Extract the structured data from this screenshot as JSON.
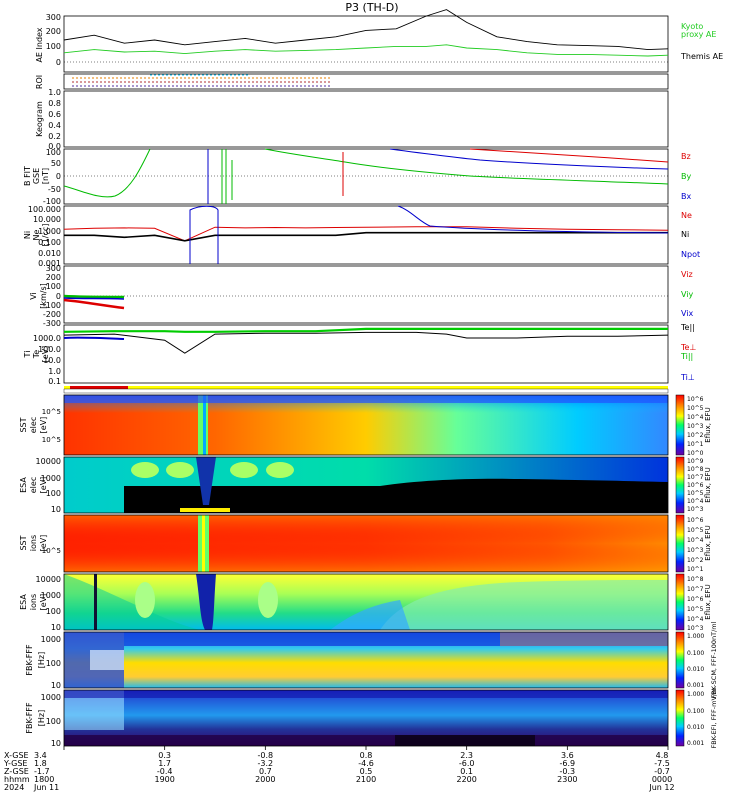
{
  "figure": {
    "title": "P3 (TH-D)"
  },
  "panels": {
    "ae": {
      "ylabel": "AE Index",
      "yticks": [
        "300",
        "200",
        "100",
        "0"
      ],
      "legend": [
        {
          "text": "Kyoto",
          "color": "#22cc22"
        },
        {
          "text": "proxy AE",
          "color": "#22cc22"
        },
        {
          "text": "Themis AE",
          "color": "#000000"
        }
      ]
    },
    "roi": {
      "ylabel": "ROI"
    },
    "keogram": {
      "ylabel": "Keogram",
      "yticks": [
        "1.0",
        "0.8",
        "0.6",
        "0.4",
        "0.2",
        "0.0"
      ]
    },
    "bfit": {
      "ylabel": "B FIT",
      "ylabel2": "GSE",
      "ylabel3": "[nT]",
      "yticks": [
        "100",
        "50",
        "0",
        "-50",
        "-100"
      ],
      "legend": [
        {
          "text": "Bz",
          "color": "#dd0000"
        },
        {
          "text": "By",
          "color": "#00bb00"
        },
        {
          "text": "Bx",
          "color": "#0000cc"
        }
      ]
    },
    "density": {
      "ylabel": "Ni",
      "ylabel2": "Ne",
      "ylabel3": "[1/cc]",
      "yticks": [
        "100.000",
        "10.000",
        "1.000",
        "0.100",
        "0.010",
        "0.001"
      ],
      "legend": [
        {
          "text": "Ne",
          "color": "#dd0000"
        },
        {
          "text": "Ni",
          "color": "#000000"
        },
        {
          "text": "Npot",
          "color": "#0000cc"
        }
      ]
    },
    "velocity": {
      "ylabel": "Vi",
      "ylabel2": "[km/s]",
      "yticks": [
        "300",
        "200",
        "100",
        "0",
        "-100",
        "-200",
        "-300"
      ],
      "legend": [
        {
          "text": "Viz",
          "color": "#dd0000"
        },
        {
          "text": "Viy",
          "color": "#00bb00"
        },
        {
          "text": "Vix",
          "color": "#0000cc"
        }
      ]
    },
    "temperature": {
      "ylabel": "Ti",
      "ylabel2": "Te",
      "ylabel3": "[eV]",
      "yticks": [
        "1000.0",
        "100.0",
        "10.0",
        "1.0",
        "0.1"
      ],
      "legend": [
        {
          "text": "Te||",
          "color": "#000000"
        },
        {
          "text": "Te⊥",
          "color": "#dd0000"
        },
        {
          "text": "Ti||",
          "color": "#00bb00"
        },
        {
          "text": "Ti⊥",
          "color": "#0000cc"
        }
      ]
    },
    "sst_e": {
      "ylabel": "SST",
      "ylabel2": "elec",
      "ylabel3": "[eV]",
      "yticks": [
        "10^5",
        "10^5"
      ],
      "cbar_ticks": [
        "10^6",
        "10^5",
        "10^4",
        "10^3",
        "10^2",
        "10^1",
        "10^0"
      ],
      "cbar_label": "Eflux, EFU"
    },
    "esa_e": {
      "ylabel": "ESA",
      "ylabel2": "elec",
      "ylabel3": "[eV]",
      "yticks": [
        "10000",
        "1000",
        "100",
        "10"
      ],
      "cbar_ticks": [
        "10^9",
        "10^8",
        "10^7",
        "10^6",
        "10^5",
        "10^4",
        "10^3"
      ],
      "cbar_label": "Eflux, EFU"
    },
    "sst_i": {
      "ylabel": "SST",
      "ylabel2": "ions",
      "ylabel3": "[eV]",
      "yticks": [
        "10^5"
      ],
      "cbar_ticks": [
        "10^6",
        "10^5",
        "10^4",
        "10^3",
        "10^2",
        "10^1"
      ],
      "cbar_label": "Eflux, EFU"
    },
    "esa_i": {
      "ylabel": "ESA",
      "ylabel2": "ions",
      "ylabel3": "[eV]",
      "yticks": [
        "10000",
        "1000",
        "100",
        "10"
      ],
      "cbar_ticks": [
        "10^8",
        "10^7",
        "10^6",
        "10^5",
        "10^4",
        "10^3"
      ],
      "cbar_label": "Eflux, EFU"
    },
    "fbk_b": {
      "ylabel": "FBK-FFF",
      "ylabel2": "[Hz]",
      "yticks": [
        "1000",
        "100",
        "10"
      ],
      "cbar_ticks": [
        "1.000",
        "0.100",
        "0.010",
        "0.001"
      ],
      "cbar_label": "FBK-SCM, FFF-100nT/ml"
    },
    "fbk_e": {
      "ylabel": "FBK-FFF",
      "ylabel2": "[Hz]",
      "yticks": [
        "1000",
        "100",
        "10"
      ],
      "cbar_ticks": [
        "1.000",
        "0.100",
        "0.010",
        "0.001"
      ],
      "cbar_label": "FBK-EFI, FFF-mV/m"
    }
  },
  "xaxis": {
    "row_labels": [
      "X-GSE",
      "Y-GSE",
      "Z-GSE",
      "hhmm",
      "2024"
    ],
    "columns": [
      {
        "x": "3.4",
        "y": "1.8",
        "z": "-1.7",
        "time": "1800",
        "date": "Jun 11"
      },
      {
        "x": "0.3",
        "y": "1.7",
        "z": "-0.4",
        "time": "1900",
        "date": ""
      },
      {
        "x": "-0.8",
        "y": "-3.2",
        "z": "0.7",
        "time": "2000",
        "date": ""
      },
      {
        "x": "0.8",
        "y": "-4.6",
        "z": "0.5",
        "time": "2100",
        "date": ""
      },
      {
        "x": "2.3",
        "y": "-6.0",
        "z": "0.1",
        "time": "2200",
        "date": ""
      },
      {
        "x": "3.6",
        "y": "-6.9",
        "z": "-0.3",
        "time": "2300",
        "date": ""
      },
      {
        "x": "4.8",
        "y": "-7.5",
        "z": "-0.7",
        "time": "0000",
        "date": "Jun 12"
      }
    ]
  },
  "chart_data": {
    "type": "line",
    "x_time_range": [
      "1800",
      "0000"
    ],
    "ae_index": {
      "x_hours": [
        18.0,
        18.3,
        18.6,
        18.9,
        19.2,
        19.5,
        19.8,
        20.1,
        20.4,
        20.7,
        21.0,
        21.3,
        21.6,
        21.8,
        22.0,
        22.3,
        22.6,
        22.9,
        23.2,
        23.5,
        23.8,
        24.0
      ],
      "themis_ae": [
        150,
        180,
        130,
        150,
        120,
        140,
        160,
        130,
        150,
        170,
        210,
        220,
        300,
        340,
        260,
        170,
        140,
        120,
        115,
        110,
        90,
        95
      ],
      "kyoto_proxy_ae": [
        70,
        90,
        75,
        80,
        65,
        80,
        90,
        80,
        85,
        90,
        100,
        110,
        110,
        120,
        100,
        90,
        70,
        60,
        60,
        55,
        50,
        55
      ],
      "ylim": [
        -50,
        300
      ]
    },
    "density": {
      "x_hours": [
        18.0,
        18.3,
        18.6,
        18.9,
        19.2,
        19.5,
        19.8,
        20.1,
        20.4,
        20.7,
        21.0,
        21.5,
        22.0,
        22.5,
        23.0,
        23.5,
        24.0
      ],
      "ne": [
        1.0,
        1.2,
        1.3,
        1.2,
        0.1,
        1.5,
        1.3,
        1.4,
        1.3,
        1.4,
        1.5,
        1.6,
        1.6,
        1.2,
        1.0,
        0.9,
        0.8
      ],
      "ni": [
        0.3,
        0.3,
        0.2,
        0.3,
        0.1,
        0.3,
        0.3,
        0.3,
        0.3,
        0.3,
        0.5,
        0.5,
        0.5,
        0.5,
        0.5,
        0.5,
        0.5
      ],
      "ylim": [
        0.001,
        100
      ]
    },
    "temperature": {
      "x_hours": [
        18.0,
        18.5,
        19.0,
        19.2,
        19.5,
        20.0,
        20.5,
        21.0,
        21.5,
        21.8,
        22.0,
        22.5,
        23.0,
        23.5,
        24.0
      ],
      "te_par": [
        900,
        1000,
        1000,
        900,
        900,
        1000,
        1000,
        1500,
        1500,
        1500,
        1500,
        1500,
        1500,
        1500,
        1500
      ],
      "ti_par": [
        500,
        600,
        200,
        20,
        600,
        700,
        700,
        800,
        800,
        600,
        300,
        300,
        400,
        400,
        500
      ],
      "ylim": [
        0.1,
        3000
      ]
    }
  }
}
